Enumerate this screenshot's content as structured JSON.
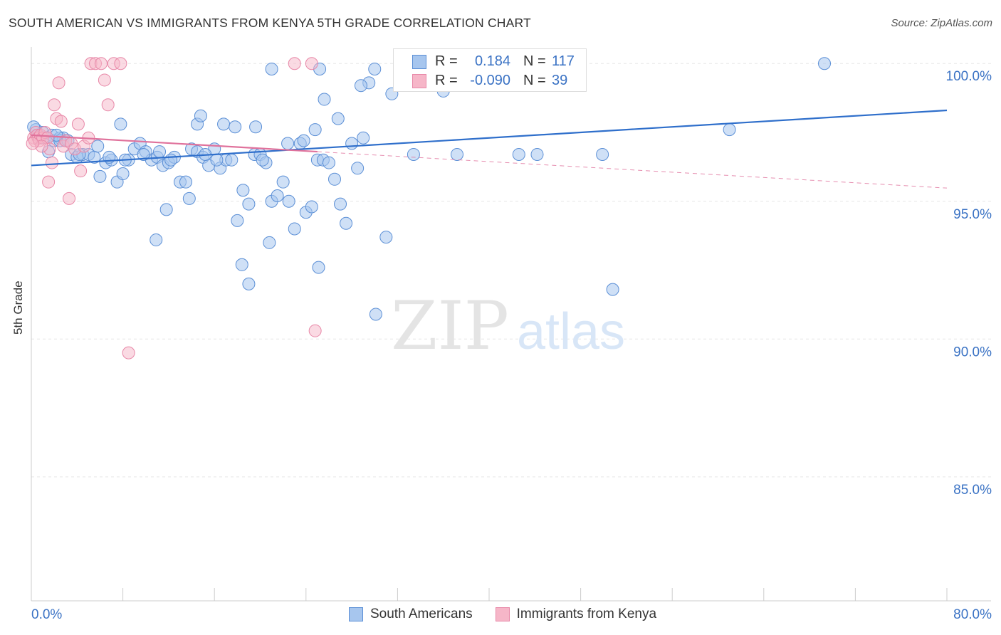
{
  "title": "SOUTH AMERICAN VS IMMIGRANTS FROM KENYA 5TH GRADE CORRELATION CHART",
  "source": "Source: ZipAtlas.com",
  "watermark": {
    "zip": "ZIP",
    "atlas": "atlas"
  },
  "stats": [
    {
      "swatch_color": "#a7c6ee",
      "r_label": "R =",
      "r_value": "0.184",
      "n_label": "N =",
      "n_value": "117"
    },
    {
      "swatch_color": "#f6b6c8",
      "r_label": "R =",
      "r_value": "-0.090",
      "n_label": "N =",
      "n_value": "39"
    }
  ],
  "legend": [
    {
      "label": "South Americans",
      "color": "#a7c6ee"
    },
    {
      "label": "Immigrants from Kenya",
      "color": "#f6b6c8"
    }
  ],
  "colors": {
    "blue_fill": "#a7c6ee",
    "blue_stroke": "#5b8fd6",
    "blue_line": "#2f6fcb",
    "pink_fill": "#f6b6c8",
    "pink_stroke": "#e888a8",
    "pink_line": "#e0729c",
    "tick_text": "#3a72c4"
  },
  "chart_data": {
    "type": "scatter",
    "title": "SOUTH AMERICAN VS IMMIGRANTS FROM KENYA 5TH GRADE CORRELATION CHART",
    "xlabel": "",
    "ylabel": "5th Grade",
    "xlim": [
      0,
      80
    ],
    "ylim": [
      80.5,
      100.6
    ],
    "x_tick_labels": [
      "0.0%",
      "80.0%"
    ],
    "y_ticks": [
      100,
      95,
      90,
      85
    ],
    "y_tick_labels": [
      "100.0%",
      "95.0%",
      "90.0%",
      "85.0%"
    ],
    "grid": true,
    "series": [
      {
        "name": "South Americans",
        "trend": {
          "x": [
            0,
            80
          ],
          "y": [
            96.3,
            98.3
          ]
        },
        "points": [
          [
            0.4,
            97.6
          ],
          [
            0.6,
            97.4
          ],
          [
            0.8,
            97.3
          ],
          [
            1.0,
            97.5
          ],
          [
            1.2,
            97.3
          ],
          [
            1.5,
            96.8
          ],
          [
            1.8,
            97.4
          ],
          [
            2.0,
            97.2
          ],
          [
            2.5,
            97.3
          ],
          [
            2.8,
            97.3
          ],
          [
            3.0,
            97.2
          ],
          [
            3.5,
            96.7
          ],
          [
            4.0,
            96.6
          ],
          [
            4.5,
            96.7
          ],
          [
            5.0,
            96.7
          ],
          [
            5.5,
            96.6
          ],
          [
            6.0,
            95.9
          ],
          [
            6.5,
            96.4
          ],
          [
            7.0,
            96.5
          ],
          [
            7.5,
            95.7
          ],
          [
            8.0,
            96.0
          ],
          [
            8.5,
            96.5
          ],
          [
            9.0,
            96.9
          ],
          [
            9.5,
            97.1
          ],
          [
            10.0,
            96.8
          ],
          [
            10.5,
            96.5
          ],
          [
            11.0,
            96.6
          ],
          [
            11.5,
            96.3
          ],
          [
            12.0,
            96.4
          ],
          [
            12.5,
            96.6
          ],
          [
            13.0,
            95.7
          ],
          [
            13.5,
            95.7
          ],
          [
            14.0,
            96.9
          ],
          [
            14.5,
            96.8
          ],
          [
            15.0,
            96.6
          ],
          [
            15.5,
            96.3
          ],
          [
            16.0,
            96.9
          ],
          [
            16.5,
            96.2
          ],
          [
            17.0,
            96.5
          ],
          [
            17.5,
            96.5
          ],
          [
            18.0,
            94.3
          ],
          [
            18.5,
            95.4
          ],
          [
            19.0,
            94.9
          ],
          [
            19.5,
            96.7
          ],
          [
            20.0,
            96.7
          ],
          [
            20.5,
            96.4
          ],
          [
            21.0,
            95.0
          ],
          [
            21.5,
            95.2
          ],
          [
            22.0,
            95.7
          ],
          [
            22.5,
            95.0
          ],
          [
            23.0,
            94.0
          ],
          [
            23.5,
            97.1
          ],
          [
            24.0,
            94.6
          ],
          [
            24.5,
            94.8
          ],
          [
            25.0,
            96.5
          ],
          [
            25.5,
            96.5
          ],
          [
            26.0,
            96.4
          ],
          [
            26.5,
            95.8
          ],
          [
            27.0,
            94.9
          ],
          [
            27.5,
            94.2
          ],
          [
            28.0,
            97.1
          ],
          [
            28.5,
            96.2
          ],
          [
            29.0,
            97.3
          ],
          [
            29.5,
            99.3
          ],
          [
            30.0,
            99.8
          ],
          [
            31.0,
            93.7
          ],
          [
            31.5,
            98.9
          ],
          [
            33.0,
            100.0
          ],
          [
            34.0,
            99.4
          ],
          [
            35.0,
            99.3
          ],
          [
            36.0,
            99.0
          ],
          [
            38.0,
            100.0
          ],
          [
            38.5,
            99.5
          ],
          [
            2.5,
            97.2
          ],
          [
            4.2,
            96.7
          ],
          [
            5.8,
            97.0
          ],
          [
            7.8,
            97.8
          ],
          [
            9.8,
            96.7
          ],
          [
            11.2,
            96.8
          ],
          [
            11.8,
            94.7
          ],
          [
            13.8,
            95.1
          ],
          [
            14.5,
            97.8
          ],
          [
            14.8,
            98.1
          ],
          [
            16.8,
            97.8
          ],
          [
            17.8,
            97.7
          ],
          [
            19.6,
            97.7
          ],
          [
            20.2,
            96.5
          ],
          [
            20.8,
            93.5
          ],
          [
            22.4,
            97.1
          ],
          [
            23.8,
            97.2
          ],
          [
            24.8,
            97.6
          ],
          [
            25.2,
            99.8
          ],
          [
            25.6,
            98.7
          ],
          [
            26.8,
            98.0
          ],
          [
            28.8,
            99.2
          ],
          [
            21.0,
            99.8
          ],
          [
            10.9,
            93.6
          ],
          [
            18.4,
            92.7
          ],
          [
            19.0,
            92.0
          ],
          [
            25.1,
            92.6
          ],
          [
            30.1,
            90.9
          ],
          [
            33.4,
            96.7
          ],
          [
            37.2,
            96.7
          ],
          [
            42.6,
            96.7
          ],
          [
            44.2,
            96.7
          ],
          [
            49.9,
            96.7
          ],
          [
            61.0,
            97.6
          ],
          [
            69.3,
            100.0
          ],
          [
            50.8,
            91.8
          ],
          [
            0.2,
            97.7
          ],
          [
            2.2,
            97.4
          ],
          [
            3.2,
            97.2
          ],
          [
            6.8,
            96.6
          ],
          [
            8.2,
            96.5
          ],
          [
            12.2,
            96.5
          ],
          [
            15.2,
            96.7
          ],
          [
            16.2,
            96.5
          ]
        ]
      },
      {
        "name": "Immigrants from Kenya",
        "trend": {
          "x": [
            0,
            25
          ],
          "y": [
            97.4,
            96.8
          ]
        },
        "points": [
          [
            0.2,
            97.3
          ],
          [
            0.3,
            97.2
          ],
          [
            0.4,
            97.5
          ],
          [
            0.5,
            97.4
          ],
          [
            0.6,
            97.3
          ],
          [
            0.7,
            97.2
          ],
          [
            0.8,
            97.4
          ],
          [
            1.0,
            97.3
          ],
          [
            1.2,
            97.5
          ],
          [
            1.4,
            97.3
          ],
          [
            1.6,
            96.9
          ],
          [
            1.8,
            96.4
          ],
          [
            2.0,
            98.5
          ],
          [
            2.2,
            98.0
          ],
          [
            2.4,
            99.3
          ],
          [
            2.6,
            97.9
          ],
          [
            2.8,
            97.0
          ],
          [
            3.0,
            97.2
          ],
          [
            3.3,
            95.1
          ],
          [
            3.5,
            97.1
          ],
          [
            3.8,
            96.9
          ],
          [
            4.1,
            97.8
          ],
          [
            4.3,
            96.1
          ],
          [
            4.6,
            97.0
          ],
          [
            5.0,
            97.3
          ],
          [
            5.2,
            100.0
          ],
          [
            5.6,
            100.0
          ],
          [
            6.1,
            100.0
          ],
          [
            6.4,
            99.4
          ],
          [
            6.7,
            98.5
          ],
          [
            7.2,
            100.0
          ],
          [
            7.8,
            100.0
          ],
          [
            8.5,
            89.5
          ],
          [
            23.0,
            100.0
          ],
          [
            24.5,
            100.0
          ],
          [
            24.8,
            90.3
          ],
          [
            1.5,
            95.7
          ],
          [
            0.9,
            97.0
          ],
          [
            0.1,
            97.1
          ]
        ]
      }
    ]
  }
}
